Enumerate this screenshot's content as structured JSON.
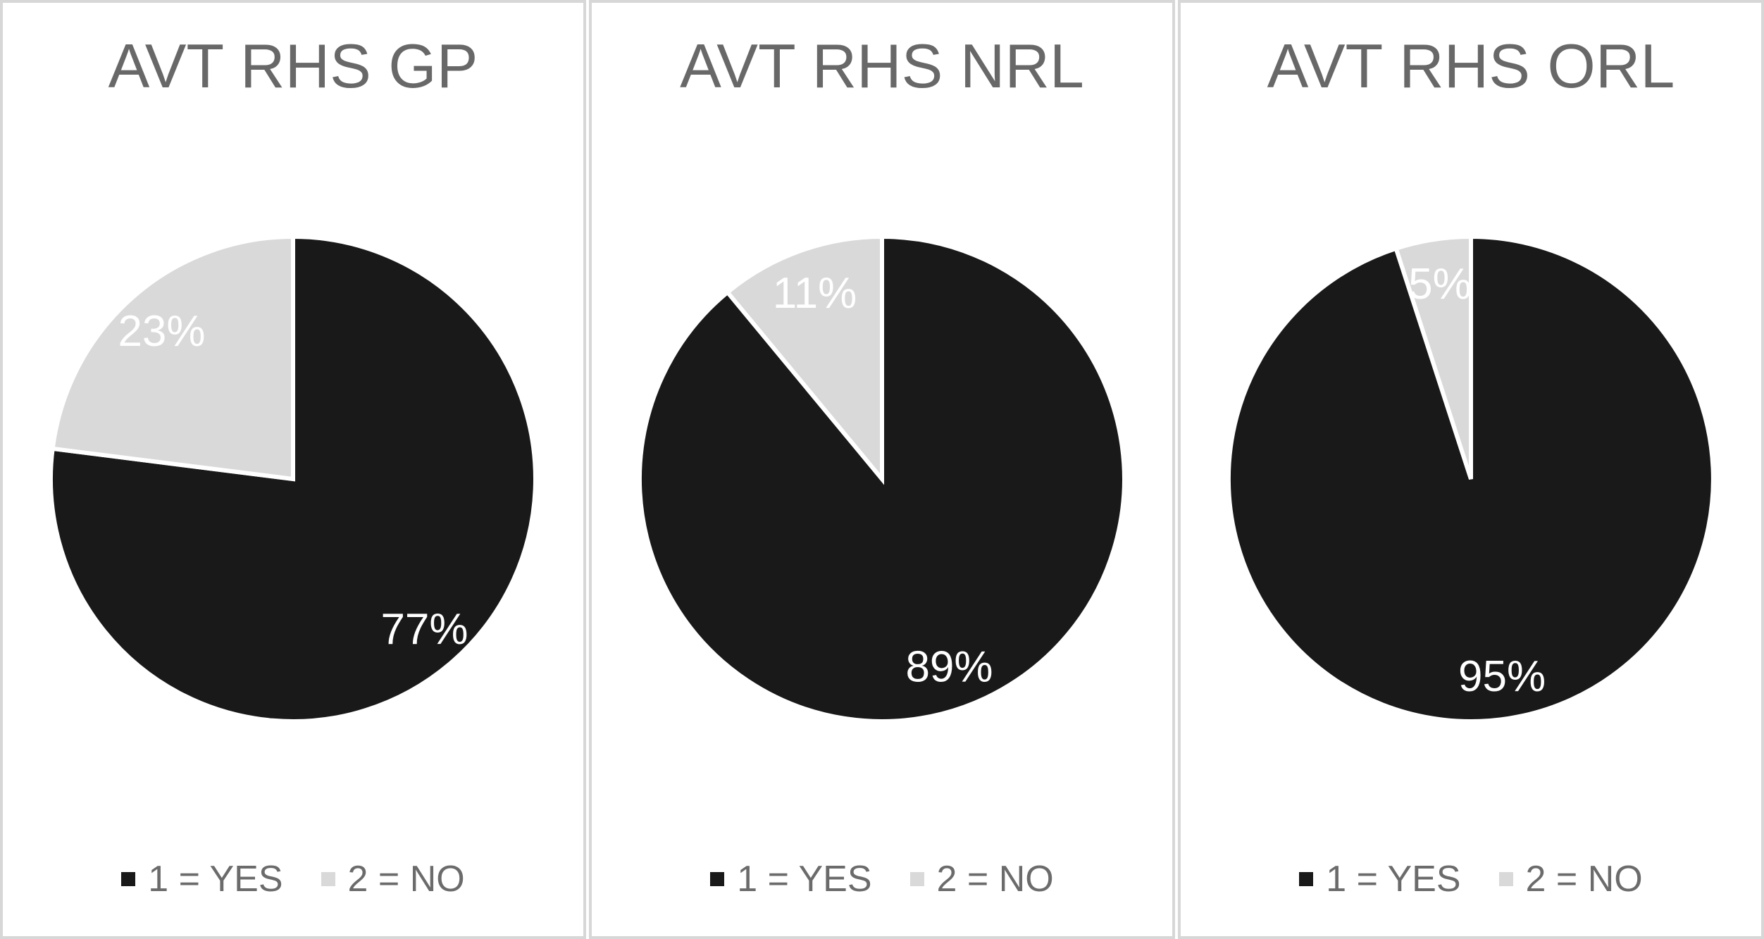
{
  "chart_data": [
    {
      "type": "pie",
      "title": "AVT RHS GP",
      "labels": [
        "1 = YES",
        "2 = NO"
      ],
      "values": [
        77,
        23
      ],
      "value_labels": [
        "77%",
        "23%"
      ],
      "unit": "%",
      "colors": [
        "#191919",
        "#d9d9d9"
      ],
      "start_angle_deg": 0,
      "direction": "clockwise",
      "legend_position": "bottom"
    },
    {
      "type": "pie",
      "title": "AVT RHS NRL",
      "labels": [
        "1 = YES",
        "2 = NO"
      ],
      "values": [
        89,
        11
      ],
      "value_labels": [
        "89%",
        "11%"
      ],
      "unit": "%",
      "colors": [
        "#191919",
        "#d9d9d9"
      ],
      "start_angle_deg": 0,
      "direction": "clockwise",
      "legend_position": "bottom"
    },
    {
      "type": "pie",
      "title": "AVT RHS ORL",
      "labels": [
        "1 = YES",
        "2 = NO"
      ],
      "values": [
        95,
        5
      ],
      "value_labels": [
        "95%",
        "5%"
      ],
      "unit": "%",
      "colors": [
        "#191919",
        "#d9d9d9"
      ],
      "start_angle_deg": 0,
      "direction": "clockwise",
      "legend_position": "bottom"
    }
  ],
  "style": {
    "slice_border_color": "#ffffff",
    "data_label_color": "#ffffff",
    "title_color": "#686868",
    "legend_text_color": "#6b6b6b",
    "panel_border_color": "#d7d7d7"
  }
}
